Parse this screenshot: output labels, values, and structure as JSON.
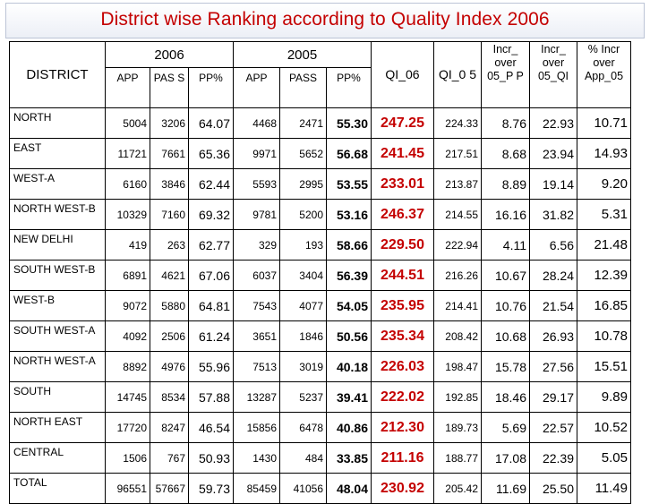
{
  "title": "District wise Ranking according to Quality Index 2006",
  "headers": {
    "district": "DISTRICT",
    "year_2006": "2006",
    "year_2005": "2005",
    "app_06": "APP",
    "pass_06": "PAS S",
    "pp_06": "PP%",
    "app_05": "APP",
    "pass_05": "PASS",
    "pp_05": "PP%",
    "qi_06": "QI_06",
    "qi_05": "QI_0 5",
    "incr_pp": "Incr_ over 05_P P",
    "incr_qi": "Incr_ over 05_QI",
    "incr_app": "% Incr over App_05"
  },
  "rows": [
    {
      "district": "NORTH",
      "app06": "5004",
      "pass06": "3206",
      "pp06": "64.07",
      "app05": "4468",
      "pass05": "2471",
      "pp05": "55.30",
      "qi06": "247.25",
      "qi05": "224.33",
      "incr_pp": "8.76",
      "incr_qi": "22.93",
      "incr_app": "10.71"
    },
    {
      "district": "EAST",
      "app06": "11721",
      "pass06": "7661",
      "pp06": "65.36",
      "app05": "9971",
      "pass05": "5652",
      "pp05": "56.68",
      "qi06": "241.45",
      "qi05": "217.51",
      "incr_pp": "8.68",
      "incr_qi": "23.94",
      "incr_app": "14.93"
    },
    {
      "district": "WEST-A",
      "app06": "6160",
      "pass06": "3846",
      "pp06": "62.44",
      "app05": "5593",
      "pass05": "2995",
      "pp05": "53.55",
      "qi06": "233.01",
      "qi05": "213.87",
      "incr_pp": "8.89",
      "incr_qi": "19.14",
      "incr_app": "9.20"
    },
    {
      "district": "NORTH WEST-B",
      "app06": "10329",
      "pass06": "7160",
      "pp06": "69.32",
      "app05": "9781",
      "pass05": "5200",
      "pp05": "53.16",
      "qi06": "246.37",
      "qi05": "214.55",
      "incr_pp": "16.16",
      "incr_qi": "31.82",
      "incr_app": "5.31"
    },
    {
      "district": "NEW DELHI",
      "app06": "419",
      "pass06": "263",
      "pp06": "62.77",
      "app05": "329",
      "pass05": "193",
      "pp05": "58.66",
      "qi06": "229.50",
      "qi05": "222.94",
      "incr_pp": "4.11",
      "incr_qi": "6.56",
      "incr_app": "21.48"
    },
    {
      "district": "SOUTH WEST-B",
      "app06": "6891",
      "pass06": "4621",
      "pp06": "67.06",
      "app05": "6037",
      "pass05": "3404",
      "pp05": "56.39",
      "qi06": "244.51",
      "qi05": "216.26",
      "incr_pp": "10.67",
      "incr_qi": "28.24",
      "incr_app": "12.39"
    },
    {
      "district": "WEST-B",
      "app06": "9072",
      "pass06": "5880",
      "pp06": "64.81",
      "app05": "7543",
      "pass05": "4077",
      "pp05": "54.05",
      "qi06": "235.95",
      "qi05": "214.41",
      "incr_pp": "10.76",
      "incr_qi": "21.54",
      "incr_app": "16.85"
    },
    {
      "district": "SOUTH WEST-A",
      "app06": "4092",
      "pass06": "2506",
      "pp06": "61.24",
      "app05": "3651",
      "pass05": "1846",
      "pp05": "50.56",
      "qi06": "235.34",
      "qi05": "208.42",
      "incr_pp": "10.68",
      "incr_qi": "26.93",
      "incr_app": "10.78"
    },
    {
      "district": "NORTH WEST-A",
      "app06": "8892",
      "pass06": "4976",
      "pp06": "55.96",
      "app05": "7513",
      "pass05": "3019",
      "pp05": "40.18",
      "qi06": "226.03",
      "qi05": "198.47",
      "incr_pp": "15.78",
      "incr_qi": "27.56",
      "incr_app": "15.51"
    },
    {
      "district": "SOUTH",
      "app06": "14745",
      "pass06": "8534",
      "pp06": "57.88",
      "app05": "13287",
      "pass05": "5237",
      "pp05": "39.41",
      "qi06": "222.02",
      "qi05": "192.85",
      "incr_pp": "18.46",
      "incr_qi": "29.17",
      "incr_app": "9.89"
    },
    {
      "district": "NORTH EAST",
      "app06": "17720",
      "pass06": "8247",
      "pp06": "46.54",
      "app05": "15856",
      "pass05": "6478",
      "pp05": "40.86",
      "qi06": "212.30",
      "qi05": "189.73",
      "incr_pp": "5.69",
      "incr_qi": "22.57",
      "incr_app": "10.52"
    },
    {
      "district": "CENTRAL",
      "app06": "1506",
      "pass06": "767",
      "pp06": "50.93",
      "app05": "1430",
      "pass05": "484",
      "pp05": "33.85",
      "qi06": "211.16",
      "qi05": "188.77",
      "incr_pp": "17.08",
      "incr_qi": "22.39",
      "incr_app": "5.05"
    },
    {
      "district": "TOTAL",
      "app06": "96551",
      "pass06": "57667",
      "pp06": "59.73",
      "app05": "85459",
      "pass05": "41056",
      "pp05": "48.04",
      "qi06": "230.92",
      "qi05": "205.42",
      "incr_pp": "11.69",
      "incr_qi": "25.50",
      "incr_app": "11.49"
    }
  ],
  "colors": {
    "title": "#c40000",
    "qi_06": "#c40000",
    "border": "#000000"
  }
}
